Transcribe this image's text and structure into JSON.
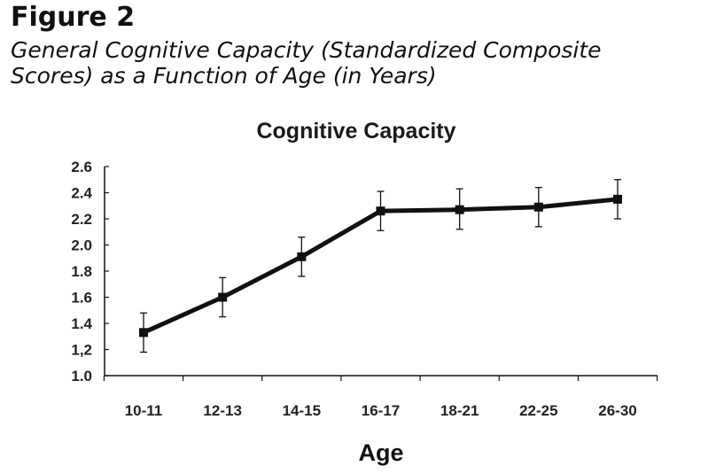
{
  "figure": {
    "label": "Figure 2",
    "caption_line1": "General Cognitive Capacity (Standardized Composite",
    "caption_line2": "Scores) as a Function of Age (in Years)"
  },
  "chart_data": {
    "type": "line",
    "title": "Cognitive Capacity",
    "xlabel": "Age",
    "ylabel": "",
    "categories": [
      "10-11",
      "12-13",
      "14-15",
      "16-17",
      "18-21",
      "22-25",
      "26-30"
    ],
    "series": [
      {
        "values": [
          1.33,
          1.6,
          1.91,
          2.26,
          2.27,
          2.29,
          2.35
        ],
        "error_low": [
          1.18,
          1.45,
          1.76,
          2.11,
          2.12,
          2.14,
          2.2
        ],
        "error_high": [
          1.48,
          1.75,
          2.06,
          2.41,
          2.43,
          2.44,
          2.5
        ]
      }
    ],
    "ylim": [
      1.0,
      2.6
    ],
    "yticks": [
      1.0,
      1.2,
      1.4,
      1.6,
      1.8,
      2.0,
      2.2,
      2.4,
      2.6
    ],
    "ytick_labels": [
      "1.0",
      "1,2",
      "1.4",
      "1.6",
      "1.8",
      "2.0",
      "2.2",
      "2.4",
      "2.6"
    ],
    "grid": false,
    "legend": "none",
    "line_color": "#111111"
  }
}
